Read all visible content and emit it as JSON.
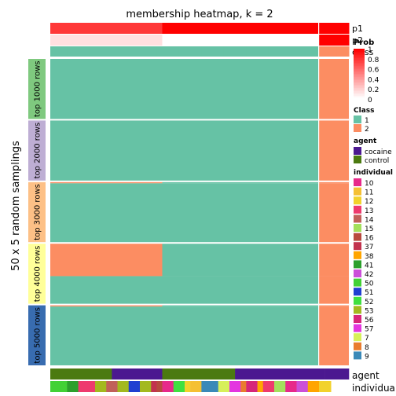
{
  "chart_data": {
    "type": "heatmap",
    "title": "membership heatmap, k = 2",
    "left_axis_label": "50 x 5 random samplings",
    "column_groups": {
      "name": "Class",
      "order": [
        1,
        2
      ],
      "counts": [
        48,
        5
      ]
    },
    "top_annotations": {
      "p1": {
        "label": "p1",
        "values": [
          0.78,
          0.78,
          0.78,
          0.78,
          0.78,
          0.78,
          0.78,
          0.78,
          0.78,
          0.78,
          0.78,
          0.78,
          0.78,
          0.78,
          0.78,
          0.78,
          0.78,
          0.78,
          0.78,
          0.78,
          1,
          1,
          1,
          1,
          1,
          1,
          1,
          1,
          1,
          1,
          1,
          1,
          1,
          1,
          1,
          1,
          1,
          1,
          1,
          1,
          1,
          1,
          1,
          1,
          1,
          1,
          1,
          1,
          1,
          1,
          1,
          1,
          1
        ]
      },
      "p2": {
        "label": "p2",
        "values": [
          0.12,
          0.12,
          0.12,
          0.12,
          0.12,
          0.12,
          0.12,
          0.12,
          0.12,
          0.12,
          0.12,
          0.12,
          0.12,
          0.12,
          0.12,
          0.12,
          0.12,
          0.12,
          0.12,
          0.12,
          0,
          0,
          0,
          0,
          0,
          0,
          0,
          0,
          0,
          0,
          0,
          0,
          0,
          0,
          0,
          0,
          0,
          0,
          0,
          0,
          0,
          0,
          0,
          0,
          0,
          0,
          0,
          0,
          1,
          1,
          1,
          1,
          1
        ]
      },
      "class": {
        "label": "class"
      }
    },
    "row_groups": [
      {
        "label": "top 1000 rows",
        "color": "#7fc97f",
        "rows": 50,
        "segments": [
          {
            "rows": 50,
            "class_start": [
              1,
              1
            ]
          }
        ]
      },
      {
        "label": "top 2000 rows",
        "color": "#beaed4",
        "rows": 50,
        "segments": [
          {
            "rows": 50,
            "class_start": [
              1,
              1
            ]
          }
        ]
      },
      {
        "label": "top 3000 rows",
        "color": "#fdc086",
        "rows": 50,
        "segments": [
          {
            "rows": 1,
            "class_start": [
              2,
              1
            ]
          },
          {
            "rows": 49,
            "class_start": [
              1,
              1
            ]
          }
        ]
      },
      {
        "label": "top 4000 rows",
        "color": "#ffff99",
        "rows": 50,
        "segments": [
          {
            "rows": 27,
            "class_start": [
              2,
              1
            ]
          },
          {
            "rows": 23,
            "class_start": [
              1,
              1
            ]
          }
        ]
      },
      {
        "label": "top 5000 rows",
        "color": "#386cb0",
        "rows": 50,
        "segments": [
          {
            "rows": 1,
            "class_start": [
              2,
              1
            ]
          },
          {
            "rows": 49,
            "class_start": [
              1,
              1
            ]
          }
        ]
      }
    ],
    "cell_rule": "columns 1-20 take class_start[0]; columns 21-48 take class_start[1]; columns 49-53 are class 2",
    "bottom_annotations": {
      "agent": {
        "label": "agent",
        "runs": [
          {
            "value": "control",
            "cols": 11
          },
          {
            "value": "cocaine",
            "cols": 9
          },
          {
            "value": "control",
            "cols": 13
          },
          {
            "value": "cocaine",
            "cols": 16
          },
          {
            "value": "cocaine",
            "cols": 4
          }
        ]
      },
      "individual": {
        "label": "individual",
        "runs": [
          {
            "value": "50",
            "cols": 3
          },
          {
            "value": "41",
            "cols": 2
          },
          {
            "value": "13",
            "cols": 3
          },
          {
            "value": "53",
            "cols": 2
          },
          {
            "value": "14",
            "cols": 2
          },
          {
            "value": "53",
            "cols": 2
          },
          {
            "value": "51",
            "cols": 2
          },
          {
            "value": "53",
            "cols": 2
          },
          {
            "value": "37",
            "cols": 1
          },
          {
            "value": "16",
            "cols": 1
          },
          {
            "value": "10",
            "cols": 2
          },
          {
            "value": "52",
            "cols": 2
          },
          {
            "value": "12",
            "cols": 1
          },
          {
            "value": "11",
            "cols": 2
          },
          {
            "value": "9",
            "cols": 3
          },
          {
            "value": "7",
            "cols": 2
          },
          {
            "value": "57",
            "cols": 2
          },
          {
            "value": "8",
            "cols": 1
          },
          {
            "value": "56",
            "cols": 2
          },
          {
            "value": "38",
            "cols": 1
          },
          {
            "value": "13",
            "cols": 2
          },
          {
            "value": "15",
            "cols": 2
          },
          {
            "value": "10",
            "cols": 2
          },
          {
            "value": "42",
            "cols": 2
          },
          {
            "value": "38",
            "cols": 2
          },
          {
            "value": "12",
            "cols": 2
          }
        ]
      }
    },
    "legends": {
      "prob": {
        "title": "Prob",
        "ticks": [
          "1",
          "0.8",
          "0.6",
          "0.4",
          "0.2",
          "0"
        ],
        "low_color": "#ffffff",
        "high_color": "#ff0000"
      },
      "class": {
        "title": "Class",
        "entries": [
          {
            "label": "1",
            "color": "#66c2a5"
          },
          {
            "label": "2",
            "color": "#fc8d62"
          }
        ]
      },
      "agent": {
        "title": "agent",
        "entries": [
          {
            "label": "cocaine",
            "color": "#4b1890"
          },
          {
            "label": "control",
            "color": "#4b7a10"
          }
        ]
      },
      "individual": {
        "title": "individual",
        "entries": [
          {
            "label": "10",
            "color": "#e7298a"
          },
          {
            "label": "11",
            "color": "#f5c033"
          },
          {
            "label": "12",
            "color": "#f2d22c"
          },
          {
            "label": "13",
            "color": "#ee3a6e"
          },
          {
            "label": "14",
            "color": "#c1605a"
          },
          {
            "label": "15",
            "color": "#a3e05c"
          },
          {
            "label": "16",
            "color": "#b84a3e"
          },
          {
            "label": "37",
            "color": "#c2334e"
          },
          {
            "label": "38",
            "color": "#ffa500"
          },
          {
            "label": "41",
            "color": "#2ca02c"
          },
          {
            "label": "42",
            "color": "#cc4fd9"
          },
          {
            "label": "50",
            "color": "#42d135"
          },
          {
            "label": "51",
            "color": "#1f3fd1"
          },
          {
            "label": "52",
            "color": "#40e040"
          },
          {
            "label": "53",
            "color": "#a3b91f"
          },
          {
            "label": "56",
            "color": "#d6267a"
          },
          {
            "label": "57",
            "color": "#e336e0"
          },
          {
            "label": "7",
            "color": "#d7f05a"
          },
          {
            "label": "8",
            "color": "#e97c2e"
          },
          {
            "label": "9",
            "color": "#3a89b8"
          }
        ]
      }
    },
    "colors": {
      "class1": "#66c2a5",
      "class2": "#fc8d62",
      "background": "#ffffff",
      "separator": "#ffffff"
    }
  }
}
